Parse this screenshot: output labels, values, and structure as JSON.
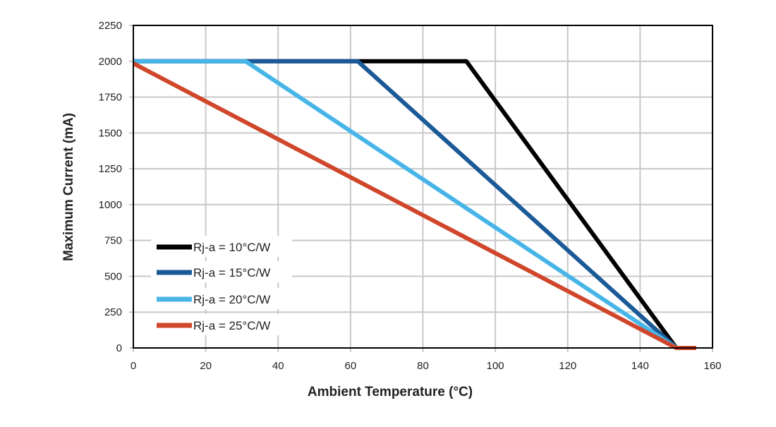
{
  "chart_data": {
    "type": "line",
    "title": "",
    "xlabel": "Ambient Temperature (°C)",
    "ylabel": "Maximum Current (mA)",
    "xlim": [
      0,
      160
    ],
    "ylim": [
      0,
      2250
    ],
    "xticks": [
      0,
      20,
      40,
      60,
      80,
      100,
      120,
      140,
      160
    ],
    "yticks": [
      0,
      250,
      500,
      750,
      1000,
      1250,
      1500,
      1750,
      2000,
      2250
    ],
    "grid": true,
    "legend_position": "bottom-left",
    "series": [
      {
        "name": "Rj-a = 10°C/W",
        "color": "#000000",
        "x": [
          0,
          92,
          150
        ],
        "y": [
          2000,
          2000,
          0
        ]
      },
      {
        "name": "Rj-a = 15°C/W",
        "color": "#1b5a97",
        "x": [
          0,
          62,
          150
        ],
        "y": [
          2000,
          2000,
          0
        ]
      },
      {
        "name": "Rj-a = 20°C/W",
        "color": "#47b5e8",
        "x": [
          0,
          31,
          150
        ],
        "y": [
          2000,
          2000,
          0
        ]
      },
      {
        "name": "Rj-a = 25°C/W",
        "color": "#d0462a",
        "x": [
          0,
          150,
          155.5
        ],
        "y": [
          1985,
          0,
          0
        ]
      }
    ]
  }
}
